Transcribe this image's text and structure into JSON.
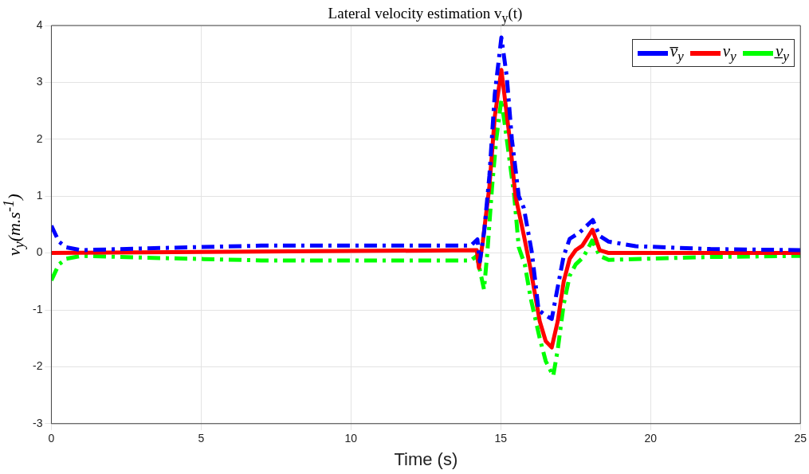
{
  "chart_data": {
    "type": "line",
    "title": "Lateral velocity estimation v$_{y}$(t)",
    "xlabel": "Time (s)",
    "ylabel": "v$_{y}$(m.s$^{-1}$)",
    "xlim": [
      0,
      25
    ],
    "xticks": [
      0,
      5,
      10,
      15,
      20,
      25
    ],
    "ylim": [
      -3,
      4
    ],
    "yticks": [
      -3,
      -2,
      -1,
      0,
      1,
      2,
      3,
      4
    ],
    "grid": true,
    "legend": "top right",
    "series": [
      {
        "name": "v̅$_{y}$",
        "color": "#0000ff",
        "line_style": "dashed",
        "x": [
          0,
          0.25,
          0.5,
          1,
          3,
          7,
          14,
          14.22,
          14.3,
          14.45,
          14.62,
          14.8,
          15.02,
          15.2,
          15.37,
          15.6,
          15.77,
          16.04,
          16.26,
          16.5,
          16.7,
          16.9,
          17.1,
          17.3,
          17.63,
          18.07,
          18.3,
          18.6,
          19.5,
          22,
          25
        ],
        "values": [
          0.48,
          0.2,
          0.1,
          0.05,
          0.08,
          0.13,
          0.13,
          0.24,
          -0.15,
          0.4,
          1.36,
          2.8,
          3.79,
          3.1,
          2,
          1,
          0.79,
          0,
          -1,
          -1.1,
          -1.16,
          -0.6,
          -0.05,
          0.25,
          0.36,
          0.58,
          0.3,
          0.2,
          0.12,
          0.07,
          0.05
        ]
      },
      {
        "name": "v$_{y}$",
        "color": "#ff0000",
        "line_style": "solid",
        "x": [
          0,
          14.2,
          14.27,
          14.4,
          14.62,
          14.8,
          15.02,
          15.3,
          15.49,
          15.77,
          16,
          16.3,
          16.5,
          16.7,
          16.9,
          17.1,
          17.3,
          17.5,
          17.72,
          18.06,
          18.3,
          18.6,
          25
        ],
        "values": [
          0,
          0.05,
          -0.26,
          0.2,
          1.17,
          2.4,
          3.22,
          2,
          1,
          0.31,
          -0.3,
          -1.2,
          -1.55,
          -1.66,
          -1.2,
          -0.5,
          -0.1,
          0.05,
          0.13,
          0.41,
          0.05,
          0,
          0
        ]
      },
      {
        "name": "v̲$_{y}$",
        "color": "#00ff00",
        "line_style": "dashed",
        "x": [
          0,
          0.25,
          0.5,
          1,
          3,
          7,
          14,
          14.2,
          14.44,
          14.55,
          14.71,
          14.85,
          15.02,
          15.2,
          15.45,
          15.6,
          15.8,
          16,
          16.3,
          16.5,
          16.75,
          16.9,
          17.1,
          17.3,
          17.5,
          17.76,
          18.05,
          18.3,
          18.6,
          22,
          25
        ],
        "values": [
          -0.48,
          -0.2,
          -0.1,
          -0.05,
          -0.08,
          -0.13,
          -0.13,
          -0.05,
          -0.64,
          0,
          1.17,
          2,
          2.7,
          2,
          1,
          0.1,
          -0.2,
          -0.8,
          -1.5,
          -1.9,
          -2.16,
          -1.7,
          -0.9,
          -0.4,
          -0.2,
          -0.07,
          0.22,
          -0.05,
          -0.12,
          -0.07,
          -0.05
        ]
      }
    ]
  }
}
